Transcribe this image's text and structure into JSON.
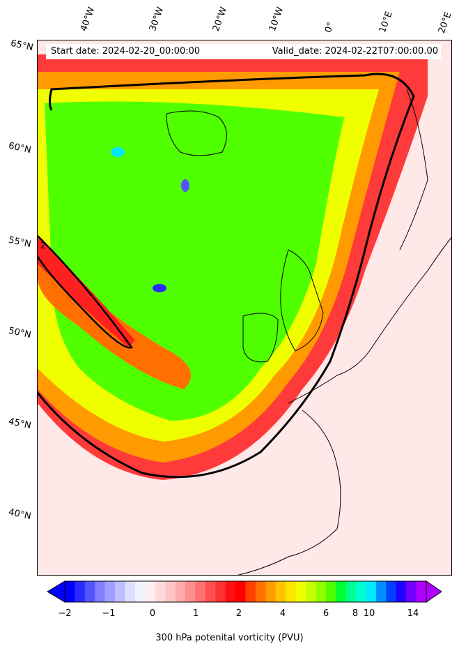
{
  "header": {
    "start_date": "Start date: 2024-02-20_00:00:00",
    "valid_date": "Valid_date: 2024-02-22T07:00:00.00"
  },
  "axes": {
    "longitudes": [
      "40°W",
      "30°W",
      "20°W",
      "10°W",
      "0°",
      "10°E",
      "20°E"
    ],
    "latitudes": [
      "65°N",
      "60°N",
      "55°N",
      "50°N",
      "45°N",
      "40°N"
    ]
  },
  "contour_label": "2",
  "colorbar": {
    "ticks": [
      "−2",
      "−1",
      "0",
      "1",
      "2",
      "4",
      "6",
      "8",
      "10",
      "14"
    ],
    "label": "300 hPa potenital vorticity (PVU)",
    "colors": [
      "#0000ff",
      "#2a2aff",
      "#5555ff",
      "#7f7fff",
      "#9f9fff",
      "#bfbfff",
      "#dfdfff",
      "#f2f2ff",
      "#fff0f0",
      "#ffdada",
      "#ffc4c4",
      "#ffaaaa",
      "#ff8f8f",
      "#ff7070",
      "#ff5050",
      "#ff3030",
      "#ff1010",
      "#ff0000",
      "#ff4000",
      "#ff7000",
      "#ff9a00",
      "#ffc400",
      "#ffe400",
      "#f0ff00",
      "#c8ff00",
      "#90ff00",
      "#50ff00",
      "#00ff30",
      "#00ff90",
      "#00ffd0",
      "#00e8ff",
      "#0090ff",
      "#0040ff",
      "#2000ff",
      "#7000ff",
      "#b000ff"
    ]
  }
}
